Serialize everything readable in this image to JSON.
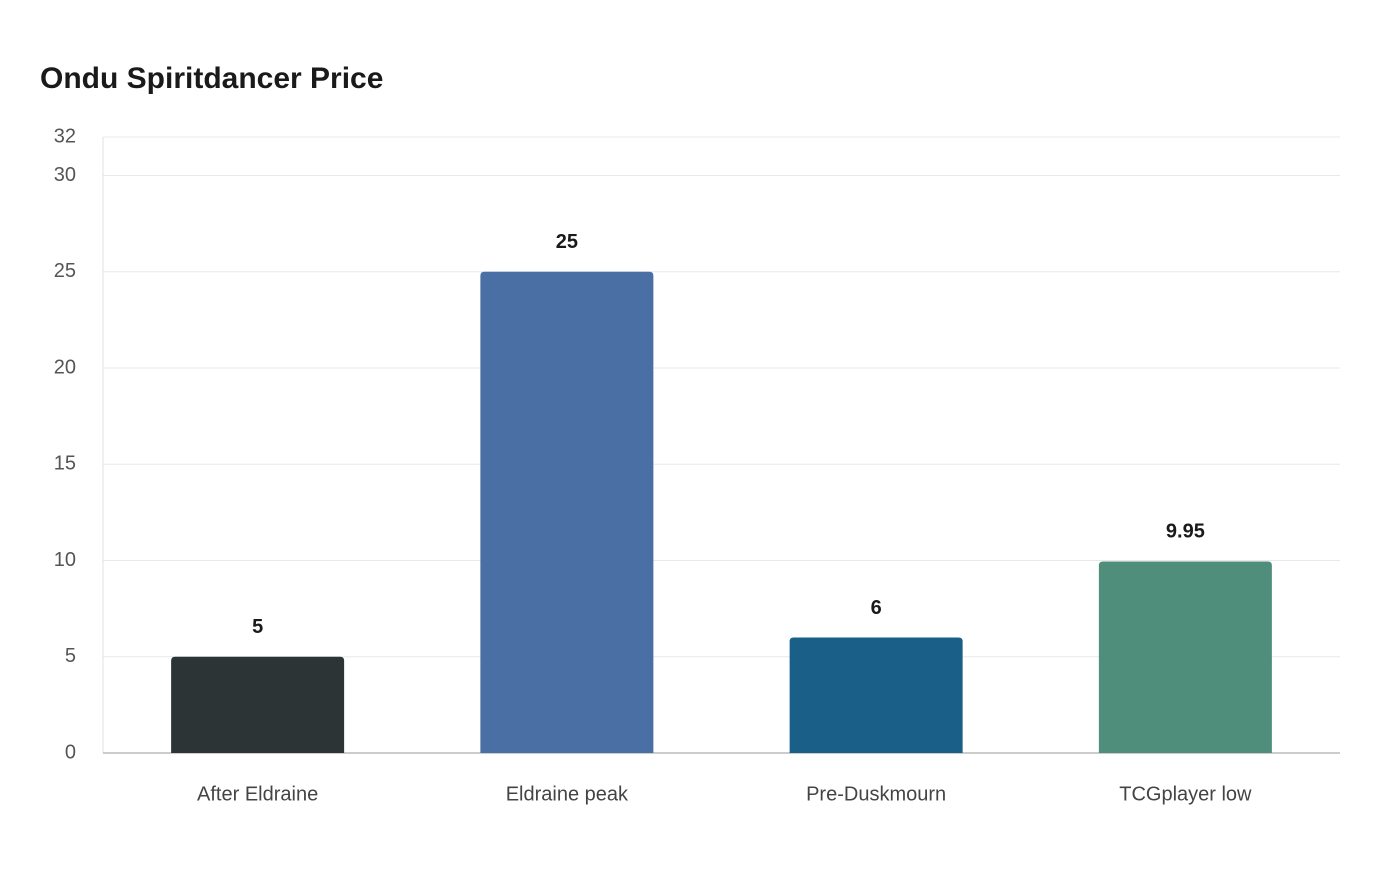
{
  "chart_data": {
    "type": "bar",
    "title": "Ondu Spiritdancer Price",
    "categories": [
      "After Eldraine",
      "Eldraine peak",
      "Pre-Duskmourn",
      "TCGplayer low"
    ],
    "values": [
      5,
      25,
      6,
      9.95
    ],
    "colors": [
      "#2d3436",
      "#4a6fa5",
      "#1a5f87",
      "#4e8e7a"
    ],
    "ylim": [
      0,
      32
    ],
    "yticks": [
      0,
      5,
      10,
      15,
      20,
      25,
      30,
      32
    ],
    "grid": true
  }
}
